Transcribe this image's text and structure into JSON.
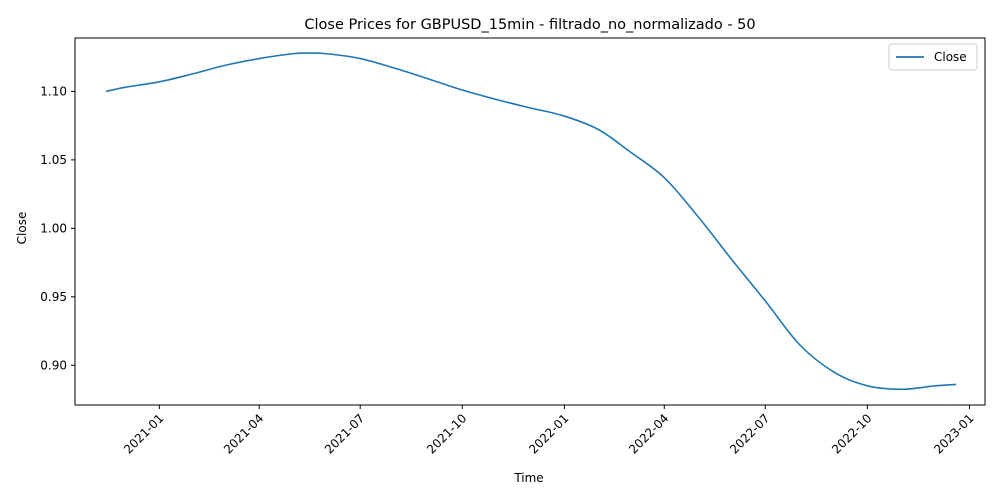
{
  "chart_data": {
    "type": "line",
    "title": "Close Prices for GBPUSD_15min - filtrado_no_normalizado - 50",
    "xlabel": "Time",
    "ylabel": "Close",
    "xlim": [
      "2020-10-17",
      "2023-01-15"
    ],
    "ylim": [
      0.871,
      1.139
    ],
    "x_ticks": [
      {
        "date": "2021-01-01",
        "label": "2021-01"
      },
      {
        "date": "2021-04-01",
        "label": "2021-04"
      },
      {
        "date": "2021-07-01",
        "label": "2021-07"
      },
      {
        "date": "2021-10-01",
        "label": "2021-10"
      },
      {
        "date": "2022-01-01",
        "label": "2022-01"
      },
      {
        "date": "2022-04-01",
        "label": "2022-04"
      },
      {
        "date": "2022-07-01",
        "label": "2022-07"
      },
      {
        "date": "2022-10-01",
        "label": "2022-10"
      },
      {
        "date": "2023-01-01",
        "label": "2023-01"
      }
    ],
    "y_ticks": [
      {
        "value": 0.9,
        "label": "0.90"
      },
      {
        "value": 0.95,
        "label": "0.95"
      },
      {
        "value": 1.0,
        "label": "1.00"
      },
      {
        "value": 1.05,
        "label": "1.05"
      },
      {
        "value": 1.1,
        "label": "1.10"
      }
    ],
    "grid": false,
    "legend": {
      "position": "top-right",
      "entries": [
        "Close"
      ]
    },
    "series": [
      {
        "name": "Close",
        "color": "#1f77b4",
        "points": [
          [
            "2020-11-14",
            1.1
          ],
          [
            "2020-12-01",
            1.103
          ],
          [
            "2021-01-01",
            1.107
          ],
          [
            "2021-02-01",
            1.113
          ],
          [
            "2021-03-01",
            1.119
          ],
          [
            "2021-04-01",
            1.124
          ],
          [
            "2021-05-01",
            1.1275
          ],
          [
            "2021-05-15",
            1.128
          ],
          [
            "2021-06-01",
            1.1275
          ],
          [
            "2021-07-01",
            1.124
          ],
          [
            "2021-08-01",
            1.117
          ],
          [
            "2021-09-01",
            1.109
          ],
          [
            "2021-10-01",
            1.101
          ],
          [
            "2021-11-01",
            1.094
          ],
          [
            "2021-12-01",
            1.088
          ],
          [
            "2022-01-01",
            1.082
          ],
          [
            "2022-02-01",
            1.072
          ],
          [
            "2022-03-01",
            1.056
          ],
          [
            "2022-04-01",
            1.037
          ],
          [
            "2022-05-01",
            1.009
          ],
          [
            "2022-06-01",
            0.977
          ],
          [
            "2022-07-01",
            0.947
          ],
          [
            "2022-08-01",
            0.915
          ],
          [
            "2022-09-01",
            0.895
          ],
          [
            "2022-10-01",
            0.885
          ],
          [
            "2022-11-01",
            0.8825
          ],
          [
            "2022-12-01",
            0.885
          ],
          [
            "2022-12-20",
            0.886
          ]
        ]
      }
    ]
  }
}
